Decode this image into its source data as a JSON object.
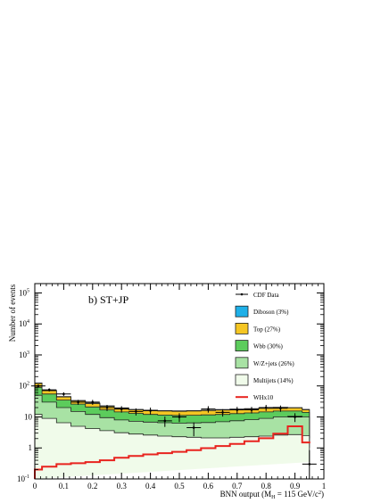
{
  "chart_data": {
    "type": "area",
    "panel_label": "b) ST+JP",
    "xlabel": "BNN output (M",
    "xlabel_sub": "H",
    "xlabel_rest": " = 115 GeV/c",
    "xlabel_sup": "2",
    "xlabel_close": ")",
    "ylabel": "Number of events",
    "xlim": [
      0,
      1
    ],
    "ylim": [
      0.1,
      200000
    ],
    "log_y": true,
    "x_ticks": [
      "0",
      "0.1",
      "0.2",
      "0.3",
      "0.4",
      "0.5",
      "0.6",
      "0.7",
      "0.8",
      "0.9",
      "1"
    ],
    "y_ticks": [
      {
        "base": "10",
        "exp": "-1",
        "value": 0.1
      },
      {
        "base": "1",
        "exp": "",
        "value": 1
      },
      {
        "base": "10",
        "exp": "",
        "value": 10
      },
      {
        "base": "10",
        "exp": "2",
        "value": 100
      },
      {
        "base": "10",
        "exp": "3",
        "value": 1000
      },
      {
        "base": "10",
        "exp": "4",
        "value": 10000
      },
      {
        "base": "10",
        "exp": "5",
        "value": 100000
      }
    ],
    "bin_edges": [
      0,
      0.025,
      0.075,
      0.125,
      0.175,
      0.225,
      0.275,
      0.325,
      0.375,
      0.425,
      0.475,
      0.525,
      0.575,
      0.625,
      0.675,
      0.725,
      0.775,
      0.825,
      0.875,
      0.925,
      0.95
    ],
    "stack": [
      {
        "name": "Multijets (14%)",
        "color": "#f0fbea",
        "values": [
          12,
          9,
          6.5,
          5.0,
          4.2,
          3.6,
          3.1,
          2.8,
          2.6,
          2.4,
          2.3,
          2.2,
          2.1,
          2.1,
          2.2,
          2.3,
          2.4,
          2.6,
          2.7,
          2.5,
          0.35
        ]
      },
      {
        "name": "W/Z+jets (26%)",
        "color": "#a8e2a4",
        "values": [
          50,
          30,
          20,
          15,
          12,
          9.5,
          8.0,
          7.2,
          6.8,
          6.5,
          6.3,
          6.4,
          6.6,
          7.0,
          7.5,
          8.2,
          9.0,
          10,
          10.5,
          10,
          1.0
        ]
      },
      {
        "name": "Wbb (30%)",
        "color": "#5ccc5c",
        "values": [
          90,
          55,
          35,
          26,
          21,
          17,
          14.5,
          13,
          12,
          11.5,
          11.2,
          11.3,
          11.6,
          12,
          12.8,
          13.5,
          14.5,
          15.5,
          15.5,
          14,
          1.5
        ]
      },
      {
        "name": "Top (27%)",
        "color": "#f5c623",
        "values": [
          120,
          70,
          44,
          33,
          27,
          22,
          19,
          17,
          16,
          15.5,
          15.2,
          15.5,
          16,
          16.8,
          17.5,
          18,
          19,
          20,
          19.5,
          17,
          2.0
        ]
      },
      {
        "name": "Diboson (3%)",
        "color": "#1fb0e8",
        "values": [
          125,
          72,
          45.5,
          34,
          28,
          22.8,
          19.6,
          17.6,
          16.5,
          16,
          15.7,
          16,
          16.5,
          17.3,
          18,
          18.6,
          19.6,
          20.6,
          20,
          17.5,
          2.1
        ]
      }
    ],
    "signal": {
      "name": "WHx10",
      "color": "#e8231e",
      "values": [
        0.2,
        0.25,
        0.3,
        0.32,
        0.35,
        0.4,
        0.48,
        0.55,
        0.62,
        0.68,
        0.75,
        0.85,
        0.98,
        1.15,
        1.35,
        1.65,
        2.05,
        2.9,
        5.0,
        1.5,
        1.6
      ]
    },
    "data": {
      "name": "CDF Data",
      "points": [
        {
          "x": 0.012,
          "y": 100
        },
        {
          "x": 0.05,
          "y": 75
        },
        {
          "x": 0.1,
          "y": 55
        },
        {
          "x": 0.15,
          "y": 30
        },
        {
          "x": 0.2,
          "y": 30
        },
        {
          "x": 0.25,
          "y": 20
        },
        {
          "x": 0.3,
          "y": 18
        },
        {
          "x": 0.35,
          "y": 15
        },
        {
          "x": 0.4,
          "y": 16
        },
        {
          "x": 0.45,
          "y": 7.5
        },
        {
          "x": 0.5,
          "y": 10
        },
        {
          "x": 0.55,
          "y": 4.5
        },
        {
          "x": 0.6,
          "y": 18
        },
        {
          "x": 0.65,
          "y": 14
        },
        {
          "x": 0.7,
          "y": 17
        },
        {
          "x": 0.75,
          "y": 17
        },
        {
          "x": 0.8,
          "y": 20
        },
        {
          "x": 0.85,
          "y": 19
        },
        {
          "x": 0.9,
          "y": 10
        },
        {
          "x": 0.95,
          "y": 0.3
        }
      ]
    },
    "legend": {
      "placement": "top-right",
      "entries": [
        {
          "label": "CDF Data",
          "kind": "data"
        },
        {
          "label": "Diboson (3%)",
          "kind": "box",
          "color": "#1fb0e8"
        },
        {
          "label": "Top (27%)",
          "kind": "box",
          "color": "#f5c623"
        },
        {
          "label": "Wbb (30%)",
          "kind": "box",
          "color": "#5ccc5c"
        },
        {
          "label": "W/Z+jets (26%)",
          "kind": "box",
          "color": "#a8e2a4"
        },
        {
          "label": "Multijets (14%)",
          "kind": "box",
          "color": "#f0fbea"
        },
        {
          "label": "WHx10",
          "kind": "line",
          "color": "#e8231e"
        }
      ]
    }
  }
}
